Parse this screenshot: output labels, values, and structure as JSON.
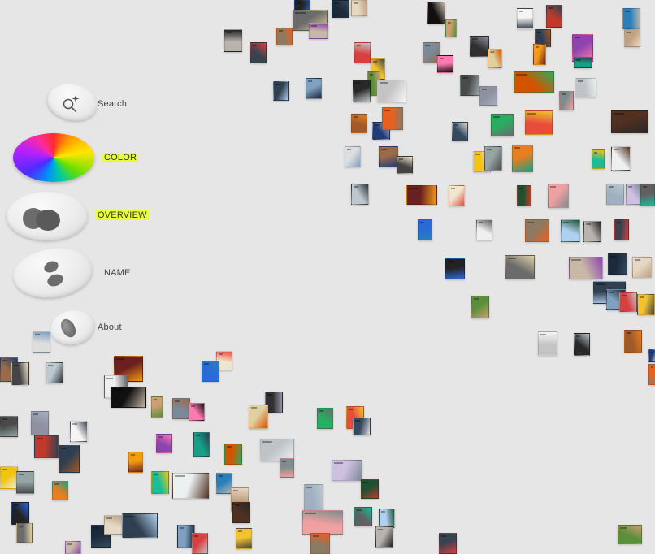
{
  "menu": {
    "search": {
      "label": "Search",
      "icon": "search-sparkle-icon"
    },
    "color": {
      "label": "COLOR",
      "icon": "color-wheel-icon"
    },
    "overview": {
      "label": "OVERVIEW",
      "icon": "overview-blobs-icon"
    },
    "name": {
      "label": "NAME",
      "icon": "name-pebbles-icon"
    },
    "about": {
      "label": "About",
      "icon": "about-pebble-icon"
    }
  },
  "colors": {
    "highlight": "#e8ff36",
    "background": "#e6e6e6"
  },
  "thumbnails": [
    "#b9b3ad",
    "#3a4250",
    "#8c7a62",
    "#222",
    "#6b6b6b",
    "#c8b8a8",
    "#1b2a3a",
    "#e5d8c4",
    "#304050",
    "#7fa0c0",
    "#d84040",
    "#f2c230",
    "#5a8f3a",
    "#c4c4c4",
    "#282828",
    "#a05a2a",
    "#1e3c78",
    "#e86020",
    "#ddd",
    "#9a6a4a",
    "#444",
    "#bcc8d0",
    "#6a2020",
    "#f0e6d0",
    "#2a6ad8",
    "#efefef",
    "#101010",
    "#caa070",
    "#7a8a9a",
    "#ff7ab0",
    "#303030",
    "#e0d0a0",
    "#4a4a4a",
    "#9090a0",
    "#f5f5f5",
    "#c0392b",
    "#2c3e50",
    "#f39c12",
    "#8e44ad",
    "#16a085",
    "#d35400",
    "#bdc3c7",
    "#7f8c8d",
    "#27ae60",
    "#e74c3c",
    "#34495e",
    "#f1c40f",
    "#95a5a6",
    "#e67e22",
    "#1abc9c",
    "#ecf0f1",
    "#2980b9",
    "#c0a080",
    "#503020",
    "#a0b0c0",
    "#d0c0e0",
    "#205030",
    "#f0a0a0",
    "#606060",
    "#b0d0f0"
  ]
}
